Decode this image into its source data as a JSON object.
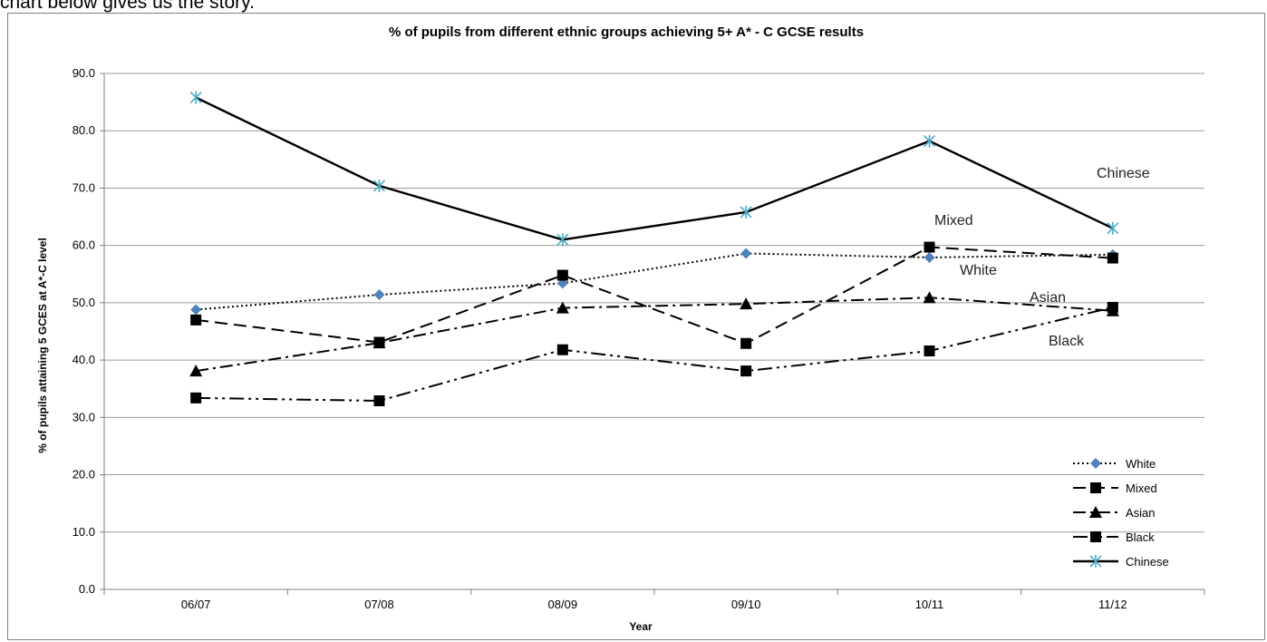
{
  "document": {
    "caption": "chart below gives us the story."
  },
  "chart_data": {
    "type": "line",
    "title": "% of pupils from different ethnic groups achieving 5+  A* - C GCSE results",
    "xlabel": "Year",
    "ylabel": "% of pupils attaining 5 GCES at A*-C level",
    "ylim": [
      0,
      90
    ],
    "yticks": [
      "0.0",
      "10.0",
      "20.0",
      "30.0",
      "40.0",
      "50.0",
      "60.0",
      "70.0",
      "80.0",
      "90.0"
    ],
    "categories": [
      "06/07",
      "07/08",
      "08/09",
      "09/10",
      "10/11",
      "11/12"
    ],
    "grid": true,
    "legend_position": "bottom-right",
    "series": [
      {
        "name": "White",
        "values": [
          48.8,
          51.4,
          53.4,
          58.6,
          57.9,
          58.4
        ],
        "color": "#000000",
        "marker": "diamond",
        "marker_color": "#4f81bd",
        "dash": "dotted"
      },
      {
        "name": "Mixed",
        "values": [
          47.0,
          43.1,
          54.8,
          42.9,
          59.7,
          57.8
        ],
        "color": "#000000",
        "marker": "square",
        "marker_color": "#000000",
        "dash": "long-dash"
      },
      {
        "name": "Asian",
        "values": [
          38.1,
          43.0,
          49.1,
          49.8,
          50.9,
          48.6
        ],
        "color": "#000000",
        "marker": "triangle",
        "marker_color": "#000000",
        "dash": "dash-dot"
      },
      {
        "name": "Black",
        "values": [
          33.4,
          32.9,
          41.8,
          38.1,
          41.6,
          49.2
        ],
        "color": "#000000",
        "marker": "square",
        "marker_color": "#000000",
        "dash": "long-dash-dot-dot"
      },
      {
        "name": "Chinese",
        "values": [
          85.8,
          70.4,
          61.0,
          65.8,
          78.2,
          63.0
        ],
        "color": "#000000",
        "marker": "star",
        "marker_color": "#4bacc6",
        "dash": "solid"
      }
    ],
    "annotations": [
      "Chinese",
      "Mixed",
      "White",
      "Asian",
      "Black"
    ]
  }
}
